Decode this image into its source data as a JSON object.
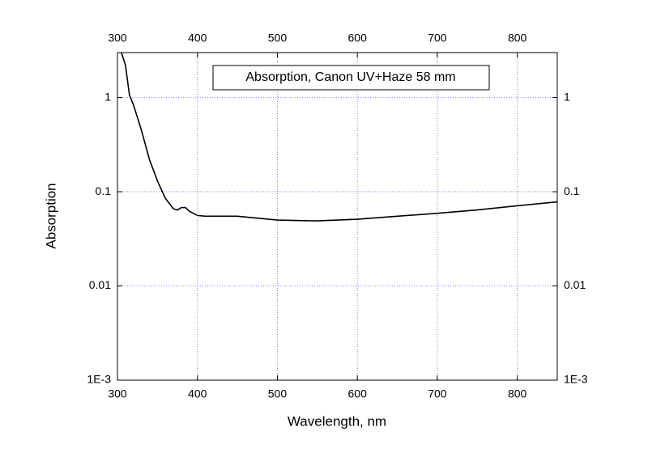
{
  "chart_data": {
    "type": "line",
    "title": "Absorption, Canon UV+Haze 58 mm",
    "x_label": "Wavelength, nm",
    "y_label": "Absorption",
    "xlim": [
      300,
      850
    ],
    "xticks": [
      300,
      400,
      500,
      600,
      700,
      800
    ],
    "ylim": [
      0.001,
      3
    ],
    "log_y": true,
    "yticks": [
      {
        "value": 0.001,
        "label": "1E-3"
      },
      0.01,
      0.1,
      1
    ],
    "grid": true,
    "color": "#000000",
    "x": [
      305,
      310,
      315,
      320,
      330,
      340,
      350,
      360,
      370,
      375,
      380,
      385,
      390,
      400,
      410,
      450,
      500,
      550,
      600,
      650,
      700,
      750,
      800,
      850
    ],
    "values": [
      3.0,
      2.2,
      1.06,
      0.84,
      0.45,
      0.22,
      0.13,
      0.085,
      0.066,
      0.064,
      0.068,
      0.068,
      0.062,
      0.056,
      0.055,
      0.055,
      0.05,
      0.049,
      0.051,
      0.055,
      0.059,
      0.064,
      0.071,
      0.078
    ]
  }
}
